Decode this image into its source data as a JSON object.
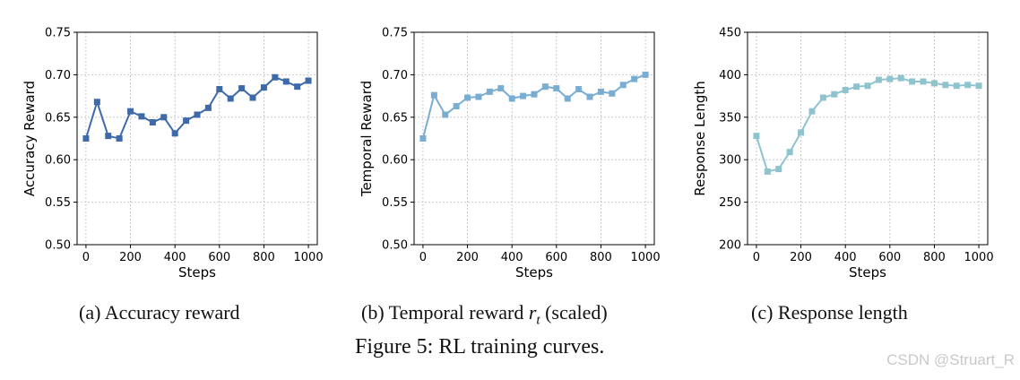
{
  "figure": {
    "caption": "Figure 5: RL training curves.",
    "watermark": "CSDN @Struart_R"
  },
  "subcaptions": {
    "a": {
      "label": "(a)",
      "text": "Accuracy reward"
    },
    "b": {
      "label": "(b)",
      "text_before": "Temporal reward",
      "math_var": "r",
      "math_sub": "t",
      "text_after": "(scaled)"
    },
    "c": {
      "label": "(c)",
      "text": "Response length"
    }
  },
  "chart_data": [
    {
      "type": "line",
      "title": "",
      "xlabel": "Steps",
      "ylabel": "Accuracy Reward",
      "xlim": [
        -40,
        1040
      ],
      "ylim": [
        0.5,
        0.75
      ],
      "xticks": [
        0,
        200,
        400,
        600,
        800,
        1000
      ],
      "yticks": [
        0.5,
        0.55,
        0.6,
        0.65,
        0.7,
        0.75
      ],
      "ytick_labels": [
        "0.50",
        "0.55",
        "0.60",
        "0.65",
        "0.70",
        "0.75"
      ],
      "grid": true,
      "color": "#3e6aa9",
      "marker": "square",
      "x": [
        0,
        50,
        100,
        150,
        200,
        250,
        300,
        350,
        400,
        450,
        500,
        550,
        600,
        650,
        700,
        750,
        800,
        850,
        900,
        950,
        1000
      ],
      "values": [
        0.625,
        0.668,
        0.628,
        0.625,
        0.657,
        0.651,
        0.644,
        0.65,
        0.631,
        0.646,
        0.653,
        0.661,
        0.683,
        0.672,
        0.684,
        0.673,
        0.685,
        0.697,
        0.692,
        0.686,
        0.693
      ]
    },
    {
      "type": "line",
      "title": "",
      "xlabel": "Steps",
      "ylabel": "Temporal Reward",
      "xlim": [
        -40,
        1040
      ],
      "ylim": [
        0.5,
        0.75
      ],
      "xticks": [
        0,
        200,
        400,
        600,
        800,
        1000
      ],
      "yticks": [
        0.5,
        0.55,
        0.6,
        0.65,
        0.7,
        0.75
      ],
      "ytick_labels": [
        "0.50",
        "0.55",
        "0.60",
        "0.65",
        "0.70",
        "0.75"
      ],
      "grid": true,
      "color": "#79aed2",
      "marker": "square",
      "x": [
        0,
        50,
        100,
        150,
        200,
        250,
        300,
        350,
        400,
        450,
        500,
        550,
        600,
        650,
        700,
        750,
        800,
        850,
        900,
        950,
        1000
      ],
      "values": [
        0.625,
        0.676,
        0.653,
        0.663,
        0.673,
        0.674,
        0.68,
        0.684,
        0.672,
        0.675,
        0.677,
        0.686,
        0.684,
        0.672,
        0.683,
        0.674,
        0.68,
        0.678,
        0.688,
        0.695,
        0.7
      ]
    },
    {
      "type": "line",
      "title": "",
      "xlabel": "Steps",
      "ylabel": "Response Length",
      "xlim": [
        -40,
        1040
      ],
      "ylim": [
        200,
        450
      ],
      "xticks": [
        0,
        200,
        400,
        600,
        800,
        1000
      ],
      "yticks": [
        200,
        250,
        300,
        350,
        400,
        450
      ],
      "ytick_labels": [
        "200",
        "250",
        "300",
        "350",
        "400",
        "450"
      ],
      "grid": true,
      "color": "#8fc4cf",
      "marker": "square",
      "x": [
        0,
        50,
        100,
        150,
        200,
        250,
        300,
        350,
        400,
        450,
        500,
        550,
        600,
        650,
        700,
        750,
        800,
        850,
        900,
        950,
        1000
      ],
      "values": [
        328,
        286,
        289,
        309,
        332,
        357,
        373,
        377,
        382,
        386,
        387,
        394,
        395,
        396,
        392,
        392,
        390,
        388,
        387,
        388,
        387
      ]
    }
  ]
}
